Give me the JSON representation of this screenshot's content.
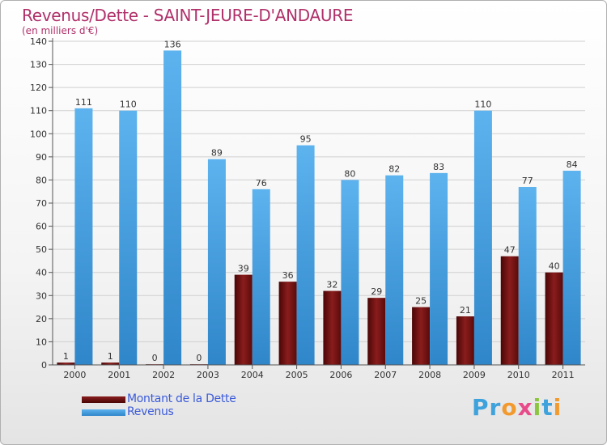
{
  "chart_data": {
    "type": "bar",
    "title": "Revenus/Dette - SAINT-JEURE-D'ANDAURE",
    "subtitle": "(en milliers d'€)",
    "categories": [
      "2000",
      "2001",
      "2002",
      "2003",
      "2004",
      "2005",
      "2006",
      "2007",
      "2008",
      "2009",
      "2010",
      "2011"
    ],
    "series": [
      {
        "name": "Montant de la Dette",
        "color": "#6b0f0f",
        "values": [
          1,
          1,
          0,
          0,
          39,
          36,
          32,
          29,
          25,
          21,
          47,
          40
        ]
      },
      {
        "name": "Revenus",
        "color": "#4aa3e8",
        "values": [
          111,
          110,
          136,
          89,
          76,
          95,
          80,
          82,
          83,
          110,
          77,
          84
        ]
      }
    ],
    "ylim": [
      0,
      140
    ],
    "yticks": [
      0,
      10,
      20,
      30,
      40,
      50,
      60,
      70,
      80,
      90,
      100,
      110,
      120,
      130,
      140
    ],
    "grid": true,
    "legend": "bottom-left"
  },
  "logo": {
    "text": "Proxiti",
    "colors": [
      "#3ea2dc",
      "#3ea2dc",
      "#f29a2e",
      "#e84b8a",
      "#8cc63f",
      "#3ea2dc",
      "#f29a2e"
    ]
  }
}
